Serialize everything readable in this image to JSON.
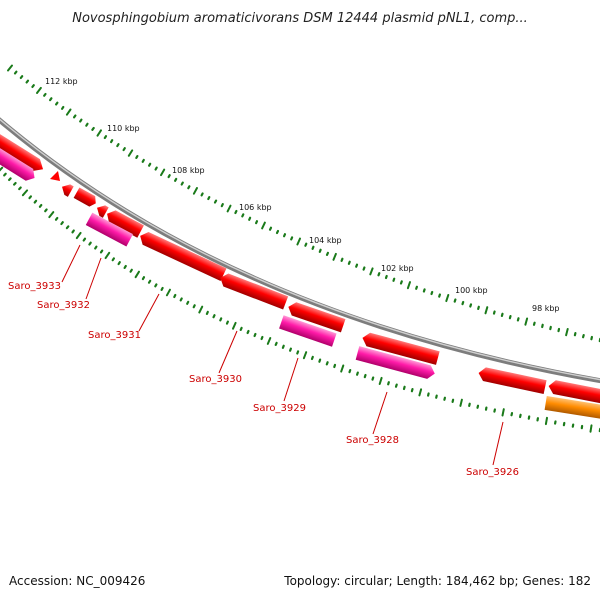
{
  "title": "Novosphingobium aromaticivorans DSM 12444 plasmid pNL1, comp...",
  "footer": {
    "accession": "Accession: NC_009426",
    "summary": "Topology: circular; Length: 184,462 bp; Genes: 182"
  },
  "scale_labels": [
    "112 kbp",
    "110 kbp",
    "108 kbp",
    "106 kbp",
    "104 kbp",
    "102 kbp",
    "100 kbp",
    "98 kbp"
  ],
  "gene_labels": [
    "Saro_3933",
    "Saro_3932",
    "Saro_3931",
    "Saro_3930",
    "Saro_3929",
    "Saro_3928",
    "Saro_3926"
  ],
  "colors": {
    "backbone": "#8a8a8a",
    "gene_red": "#ff0000",
    "gene_pink": "#ff1aa8",
    "gene_orange": "#ff8c00",
    "ticks": "#1a7a1a",
    "label": "#cc0000"
  }
}
